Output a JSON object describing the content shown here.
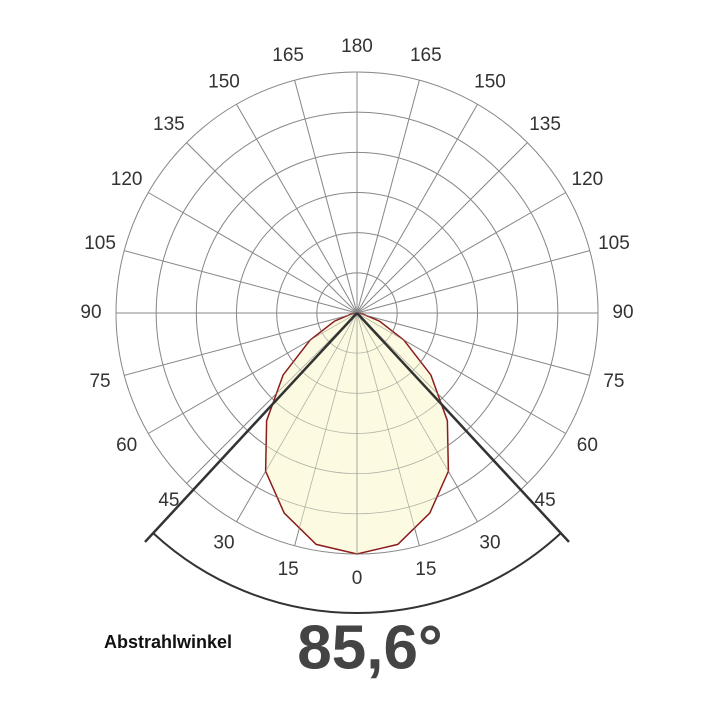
{
  "chart_data": {
    "type": "polar",
    "thetaticks": [
      0,
      15,
      30,
      45,
      60,
      75,
      90,
      105,
      120,
      135,
      150,
      165,
      180
    ],
    "rlim": [
      0,
      6
    ],
    "rticks": [
      1,
      2,
      3,
      4,
      5,
      6
    ],
    "grid": true,
    "series": [
      {
        "color": "#8b1c1c",
        "fill": "#fcf9dc",
        "angles": [
          -90,
          -80,
          -70,
          -60,
          -50,
          -40,
          -30,
          -20,
          -10,
          0,
          10,
          20,
          30,
          40,
          50,
          60,
          70,
          80,
          90
        ],
        "values": [
          0,
          0.15,
          0.6,
          1.35,
          2.4,
          3.5,
          4.55,
          5.3,
          5.85,
          6.0,
          5.85,
          5.3,
          4.55,
          3.5,
          2.4,
          1.35,
          0.6,
          0.15,
          0
        ]
      }
    ],
    "annotation": {
      "label": "Abstrahlwinkel",
      "value": 85.6,
      "value_label": "85,6°",
      "color": "#333333"
    }
  }
}
